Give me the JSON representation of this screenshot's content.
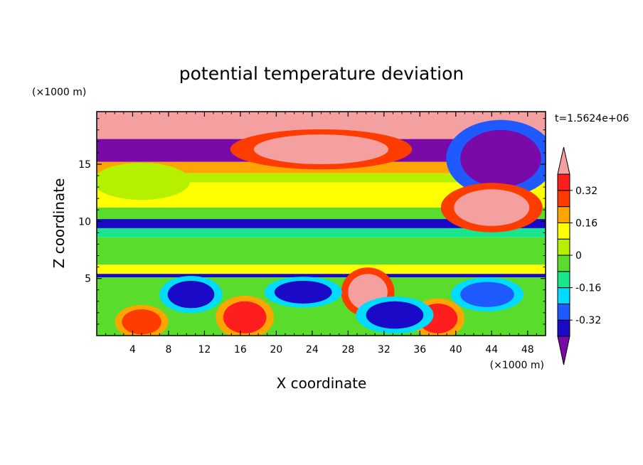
{
  "chart_data": {
    "type": "heatmap",
    "title": "potential temperature deviation",
    "xlabel": "X coordinate",
    "ylabel": "Z coordinate",
    "x_unit_label": "(×1000 m)",
    "y_unit_label": "(×1000 m)",
    "time_label": "t=1.5624e+06",
    "xlim": [
      0,
      50
    ],
    "ylim": [
      0,
      19.6
    ],
    "x_ticks": [
      4,
      8,
      12,
      16,
      20,
      24,
      28,
      32,
      36,
      40,
      44,
      48
    ],
    "y_ticks": [
      5,
      10,
      15
    ],
    "colorbar": {
      "levels": [
        -0.4,
        -0.32,
        -0.24,
        -0.16,
        -0.08,
        0,
        0.08,
        0.16,
        0.24,
        0.32,
        0.4
      ],
      "tick_labels": [
        "0.32",
        "0.16",
        "0",
        "-0.16",
        "-0.32"
      ],
      "tick_values": [
        0.32,
        0.16,
        0,
        -0.16,
        -0.32
      ],
      "colors": [
        "#7a0aa8",
        "#1a0ac8",
        "#1e5aff",
        "#00dcff",
        "#19e68c",
        "#5adc2d",
        "#b4f000",
        "#ffff00",
        "#ffa500",
        "#ff3c00",
        "#ff1e1e",
        "#f5a0a0"
      ],
      "extend": "both"
    },
    "bands": [
      {
        "z0": 17.2,
        "z1": 19.6,
        "value": 0.45
      },
      {
        "z0": 15.2,
        "z1": 17.2,
        "value": -0.45
      },
      {
        "z0": 14.2,
        "z1": 15.2,
        "value": 0.2
      },
      {
        "z0": 13.4,
        "z1": 14.2,
        "value": 0.02
      },
      {
        "z0": 11.2,
        "z1": 13.4,
        "value": 0.14
      },
      {
        "z0": 10.2,
        "z1": 11.2,
        "value": -0.05
      },
      {
        "z0": 9.4,
        "z1": 10.2,
        "value": -0.36
      },
      {
        "z0": 8.6,
        "z1": 9.4,
        "value": -0.12
      },
      {
        "z0": 6.2,
        "z1": 8.6,
        "value": -0.02
      },
      {
        "z0": 5.4,
        "z1": 6.2,
        "value": 0.12
      },
      {
        "z0": 5.1,
        "z1": 5.4,
        "value": -0.38
      },
      {
        "z0": 0,
        "z1": 5.1,
        "value": -0.08
      }
    ],
    "features": [
      {
        "cx": 30.2,
        "cz": 3.8,
        "rx": 2.2,
        "rz": 1.6,
        "value": 0.45
      },
      {
        "cx": 16.5,
        "cz": 1.6,
        "rx": 2.4,
        "rz": 1.4,
        "value": 0.36
      },
      {
        "cx": 38,
        "cz": 1.5,
        "rx": 2.2,
        "rz": 1.3,
        "value": 0.36
      },
      {
        "cx": 5,
        "cz": 1.2,
        "rx": 2.2,
        "rz": 1.1,
        "value": 0.3
      },
      {
        "cx": 10.5,
        "cz": 3.6,
        "rx": 2.6,
        "rz": 1.2,
        "value": -0.38
      },
      {
        "cx": 23,
        "cz": 3.8,
        "rx": 3.2,
        "rz": 1,
        "value": -0.36
      },
      {
        "cx": 33.2,
        "cz": 1.8,
        "rx": 3.2,
        "rz": 1.2,
        "value": -0.36
      },
      {
        "cx": 43.5,
        "cz": 3.6,
        "rx": 3,
        "rz": 1.1,
        "value": -0.3
      },
      {
        "cx": 45,
        "cz": 15.5,
        "rx": 4.5,
        "rz": 2.5,
        "value": -0.45
      },
      {
        "cx": 44,
        "cz": 11.2,
        "rx": 4.2,
        "rz": 1.6,
        "value": 0.45
      },
      {
        "cx": 5,
        "cz": 13.5,
        "rx": 4,
        "rz": 1.2,
        "value": 0
      },
      {
        "cx": 25,
        "cz": 16.3,
        "rx": 7.5,
        "rz": 1.3,
        "value": 0.45
      }
    ]
  }
}
